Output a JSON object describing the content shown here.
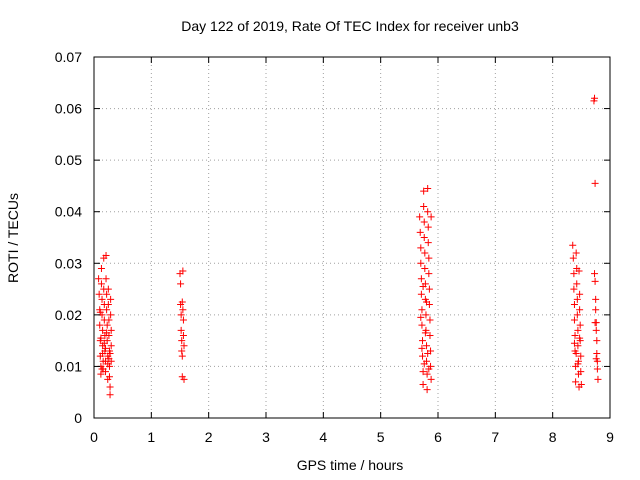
{
  "chart_data": {
    "type": "scatter",
    "title": "Day 122 of 2019, Rate Of TEC Index for receiver unb3",
    "xlabel": "GPS time / hours",
    "ylabel": "ROTI / TECUs",
    "xlim": [
      0,
      9
    ],
    "ylim": [
      0,
      0.07
    ],
    "xticks": [
      0,
      1,
      2,
      3,
      4,
      5,
      6,
      7,
      8,
      9
    ],
    "xtick_labels": [
      "0",
      "1",
      "2",
      "3",
      "4",
      "5",
      "6",
      "7",
      "8",
      "9"
    ],
    "yticks": [
      0,
      0.01,
      0.02,
      0.03,
      0.04,
      0.05,
      0.06,
      0.07
    ],
    "ytick_labels": [
      "0",
      "0.01",
      "0.02",
      "0.03",
      "0.04",
      "0.05",
      "0.06",
      "0.07"
    ],
    "grid": true,
    "marker": "plus",
    "color": "#ff0000",
    "series": [
      {
        "points": [
          [
            0.08,
            0.027
          ],
          [
            0.09,
            0.024
          ],
          [
            0.1,
            0.021
          ],
          [
            0.1,
            0.018
          ],
          [
            0.11,
            0.015
          ],
          [
            0.11,
            0.012
          ],
          [
            0.12,
            0.01
          ],
          [
            0.12,
            0.0085
          ],
          [
            0.13,
            0.029
          ],
          [
            0.13,
            0.026
          ],
          [
            0.14,
            0.023
          ],
          [
            0.14,
            0.02
          ],
          [
            0.15,
            0.017
          ],
          [
            0.15,
            0.014
          ],
          [
            0.16,
            0.011
          ],
          [
            0.16,
            0.0095
          ],
          [
            0.17,
            0.031
          ],
          [
            0.17,
            0.025
          ],
          [
            0.18,
            0.022
          ],
          [
            0.18,
            0.019
          ],
          [
            0.19,
            0.016
          ],
          [
            0.19,
            0.013
          ],
          [
            0.2,
            0.011
          ],
          [
            0.2,
            0.009
          ],
          [
            0.21,
            0.0315
          ],
          [
            0.21,
            0.027
          ],
          [
            0.22,
            0.024
          ],
          [
            0.22,
            0.021
          ],
          [
            0.23,
            0.018
          ],
          [
            0.23,
            0.015
          ],
          [
            0.24,
            0.012
          ],
          [
            0.24,
            0.0075
          ],
          [
            0.25,
            0.025
          ],
          [
            0.25,
            0.022
          ],
          [
            0.26,
            0.019
          ],
          [
            0.26,
            0.016
          ],
          [
            0.27,
            0.013
          ],
          [
            0.27,
            0.01
          ],
          [
            0.28,
            0.006
          ],
          [
            0.28,
            0.0045
          ],
          [
            0.29,
            0.023
          ],
          [
            0.29,
            0.02
          ],
          [
            0.3,
            0.017
          ],
          [
            0.3,
            0.014
          ],
          [
            0.3,
            0.011
          ],
          [
            0.27,
            0.008
          ],
          [
            0.12,
            0.0155
          ],
          [
            0.15,
            0.0125
          ],
          [
            0.18,
            0.0145
          ],
          [
            0.2,
            0.0135
          ],
          [
            0.22,
            0.0165
          ],
          [
            0.24,
            0.0105
          ],
          [
            0.26,
            0.0115
          ],
          [
            0.14,
            0.0095
          ],
          [
            0.11,
            0.0205
          ],
          [
            0.28,
            0.0125
          ],
          [
            1.5,
            0.028
          ],
          [
            1.51,
            0.022
          ],
          [
            1.52,
            0.02
          ],
          [
            1.52,
            0.017
          ],
          [
            1.53,
            0.015
          ],
          [
            1.53,
            0.013
          ],
          [
            1.54,
            0.012
          ],
          [
            1.54,
            0.008
          ],
          [
            1.55,
            0.0285
          ],
          [
            1.55,
            0.021
          ],
          [
            1.56,
            0.019
          ],
          [
            1.56,
            0.016
          ],
          [
            1.57,
            0.014
          ],
          [
            1.57,
            0.0075
          ],
          [
            1.51,
            0.026
          ],
          [
            1.54,
            0.0225
          ],
          [
            5.68,
            0.039
          ],
          [
            5.69,
            0.036
          ],
          [
            5.7,
            0.033
          ],
          [
            5.7,
            0.03
          ],
          [
            5.71,
            0.027
          ],
          [
            5.71,
            0.024
          ],
          [
            5.72,
            0.021
          ],
          [
            5.72,
            0.018
          ],
          [
            5.73,
            0.015
          ],
          [
            5.73,
            0.012
          ],
          [
            5.74,
            0.009
          ],
          [
            5.74,
            0.0065
          ],
          [
            5.75,
            0.044
          ],
          [
            5.75,
            0.041
          ],
          [
            5.76,
            0.038
          ],
          [
            5.76,
            0.035
          ],
          [
            5.77,
            0.032
          ],
          [
            5.77,
            0.029
          ],
          [
            5.78,
            0.026
          ],
          [
            5.78,
            0.023
          ],
          [
            5.79,
            0.02
          ],
          [
            5.79,
            0.017
          ],
          [
            5.8,
            0.014
          ],
          [
            5.8,
            0.011
          ],
          [
            5.81,
            0.0085
          ],
          [
            5.81,
            0.0055
          ],
          [
            5.82,
            0.0445
          ],
          [
            5.82,
            0.04
          ],
          [
            5.83,
            0.037
          ],
          [
            5.83,
            0.034
          ],
          [
            5.84,
            0.031
          ],
          [
            5.84,
            0.028
          ],
          [
            5.85,
            0.025
          ],
          [
            5.85,
            0.022
          ],
          [
            5.86,
            0.019
          ],
          [
            5.86,
            0.016
          ],
          [
            5.87,
            0.013
          ],
          [
            5.87,
            0.01
          ],
          [
            5.88,
            0.0075
          ],
          [
            5.88,
            0.039
          ],
          [
            5.7,
            0.0195
          ],
          [
            5.72,
            0.0135
          ],
          [
            5.74,
            0.0255
          ],
          [
            5.76,
            0.0105
          ],
          [
            5.78,
            0.0165
          ],
          [
            5.8,
            0.0225
          ],
          [
            5.82,
            0.0125
          ],
          [
            5.84,
            0.0095
          ],
          [
            8.35,
            0.0335
          ],
          [
            8.36,
            0.031
          ],
          [
            8.37,
            0.028
          ],
          [
            8.37,
            0.025
          ],
          [
            8.38,
            0.022
          ],
          [
            8.38,
            0.019
          ],
          [
            8.39,
            0.016
          ],
          [
            8.39,
            0.013
          ],
          [
            8.4,
            0.01
          ],
          [
            8.4,
            0.007
          ],
          [
            8.41,
            0.032
          ],
          [
            8.42,
            0.029
          ],
          [
            8.42,
            0.026
          ],
          [
            8.43,
            0.023
          ],
          [
            8.43,
            0.02
          ],
          [
            8.44,
            0.017
          ],
          [
            8.44,
            0.014
          ],
          [
            8.45,
            0.011
          ],
          [
            8.45,
            0.0085
          ],
          [
            8.46,
            0.006
          ],
          [
            8.46,
            0.0285
          ],
          [
            8.47,
            0.024
          ],
          [
            8.47,
            0.021
          ],
          [
            8.48,
            0.018
          ],
          [
            8.48,
            0.015
          ],
          [
            8.49,
            0.012
          ],
          [
            8.49,
            0.009
          ],
          [
            8.5,
            0.0065
          ],
          [
            8.38,
            0.0145
          ],
          [
            8.41,
            0.0125
          ],
          [
            8.44,
            0.0105
          ],
          [
            8.47,
            0.0155
          ],
          [
            8.72,
            0.0615
          ],
          [
            8.73,
            0.062
          ],
          [
            8.74,
            0.0455
          ],
          [
            8.73,
            0.028
          ],
          [
            8.74,
            0.0265
          ],
          [
            8.75,
            0.023
          ],
          [
            8.75,
            0.021
          ],
          [
            8.76,
            0.0185
          ],
          [
            8.76,
            0.017
          ],
          [
            8.77,
            0.015
          ],
          [
            8.77,
            0.0125
          ],
          [
            8.78,
            0.011
          ],
          [
            8.78,
            0.0095
          ],
          [
            8.79,
            0.0075
          ],
          [
            8.74,
            0.0185
          ],
          [
            8.76,
            0.0115
          ]
        ]
      }
    ]
  }
}
